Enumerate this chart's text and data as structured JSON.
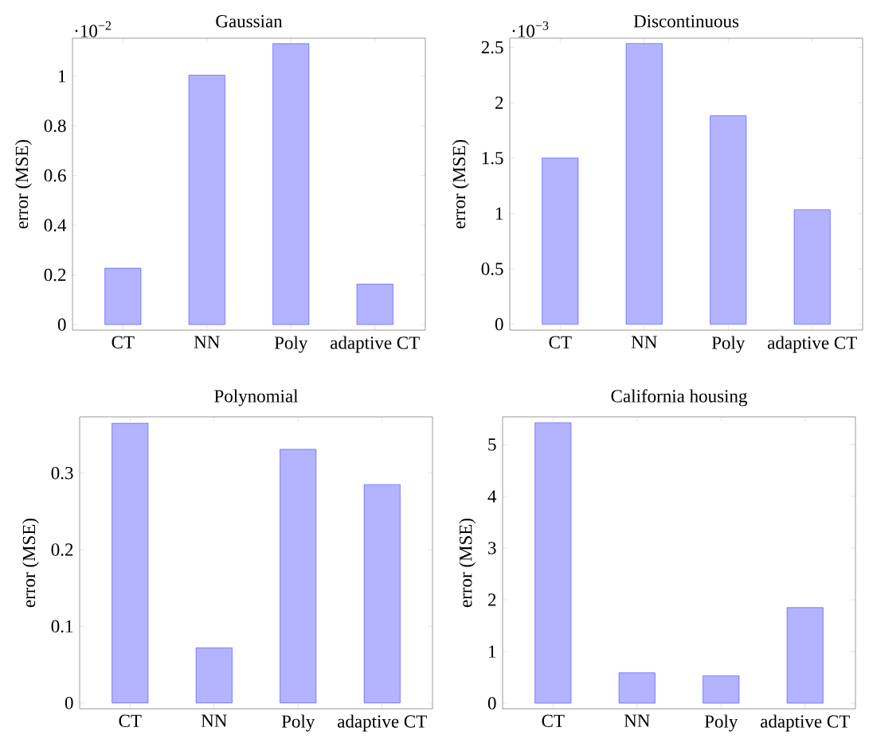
{
  "chart_data": [
    {
      "type": "bar",
      "title": "Gaussian",
      "ylabel": "error (MSE)",
      "categories": [
        "CT",
        "NN",
        "Poly",
        "adaptive CT"
      ],
      "values": [
        0.227,
        1.004,
        1.131,
        0.163
      ],
      "color": "#b3b3ff",
      "ylim": [
        -0.0224,
        1.153
      ],
      "yticks": [
        0,
        0.2,
        0.4,
        0.6,
        0.8,
        1
      ],
      "annotations": [
        "·10$^{−2}$"
      ]
    },
    {
      "type": "bar",
      "title": "Discontinuous",
      "ylabel": "error (MSE)",
      "categories": [
        "CT",
        "NN",
        "Poly",
        "adaptive CT"
      ],
      "values": [
        1.501,
        2.535,
        1.883,
        1.034
      ],
      "color": "#b3b3ff",
      "ylim": [
        -0.053,
        2.583
      ],
      "yticks": [
        0,
        0.5,
        1,
        1.5,
        2,
        2.5
      ],
      "annotations": [
        "·10$^{−3}$"
      ]
    },
    {
      "type": "bar",
      "title": "Polynomial",
      "ylabel": "error (MSE)",
      "categories": [
        "CT",
        "NN",
        "Poly",
        "adaptive CT"
      ],
      "values": [
        0.365,
        0.072,
        0.331,
        0.285
      ],
      "color": "#b3b3ff",
      "ylim": [
        -0.0076,
        0.3734
      ],
      "yticks": [
        0,
        0.1,
        0.2,
        0.3
      ]
    },
    {
      "type": "bar",
      "title": "California housing",
      "ylabel": "error (MSE)",
      "categories": [
        "CT",
        "NN",
        "Poly",
        "adaptive CT"
      ],
      "values": [
        5.42,
        0.59,
        0.53,
        1.85
      ],
      "color": "#b3b3ff",
      "ylim": [
        -0.107,
        5.536
      ],
      "yticks": [
        0,
        1,
        2,
        3,
        4,
        5
      ]
    }
  ]
}
